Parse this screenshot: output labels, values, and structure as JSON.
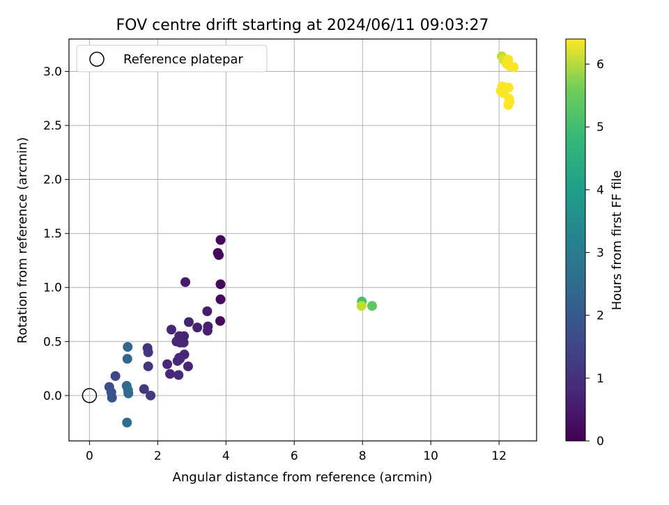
{
  "chart_data": {
    "type": "scatter",
    "title": "FOV centre drift starting at 2024/06/11 09:03:27",
    "xlabel": "Angular distance from reference (arcmin)",
    "ylabel": "Rotation from reference (arcmin)",
    "xlim": [
      -0.6,
      13.1
    ],
    "ylim": [
      -0.42,
      3.3
    ],
    "xticks": [
      0,
      2,
      4,
      6,
      8,
      10,
      12
    ],
    "yticks": [
      0.0,
      0.5,
      1.0,
      1.5,
      2.0,
      2.5,
      3.0
    ],
    "grid": true,
    "legend": {
      "placement": "top-left",
      "entries": [
        "Reference platepar"
      ]
    },
    "reference_point": {
      "x": 0.0,
      "y": 0.0,
      "label": "Reference platepar"
    },
    "colorbar": {
      "label": "Hours from first FF file",
      "colormap": "viridis",
      "range": [
        0,
        6.4
      ],
      "ticks": [
        0,
        1,
        2,
        3,
        4,
        5,
        6
      ]
    },
    "points": [
      {
        "x": 3.84,
        "y": 1.44,
        "h": 0.1
      },
      {
        "x": 3.76,
        "y": 1.32,
        "h": 0.12
      },
      {
        "x": 3.79,
        "y": 1.3,
        "h": 0.13
      },
      {
        "x": 3.84,
        "y": 1.03,
        "h": 0.15
      },
      {
        "x": 3.84,
        "y": 0.89,
        "h": 0.17
      },
      {
        "x": 3.83,
        "y": 0.69,
        "h": 0.2
      },
      {
        "x": 2.81,
        "y": 1.05,
        "h": 0.45
      },
      {
        "x": 3.45,
        "y": 0.78,
        "h": 0.5
      },
      {
        "x": 3.47,
        "y": 0.64,
        "h": 0.55
      },
      {
        "x": 3.46,
        "y": 0.6,
        "h": 0.56
      },
      {
        "x": 3.16,
        "y": 0.63,
        "h": 0.6
      },
      {
        "x": 2.91,
        "y": 0.68,
        "h": 0.62
      },
      {
        "x": 2.4,
        "y": 0.61,
        "h": 0.7
      },
      {
        "x": 2.63,
        "y": 0.55,
        "h": 0.65
      },
      {
        "x": 2.77,
        "y": 0.55,
        "h": 0.64
      },
      {
        "x": 2.55,
        "y": 0.5,
        "h": 0.66
      },
      {
        "x": 2.66,
        "y": 0.49,
        "h": 0.67
      },
      {
        "x": 2.76,
        "y": 0.49,
        "h": 0.68
      },
      {
        "x": 2.78,
        "y": 0.38,
        "h": 0.72
      },
      {
        "x": 2.58,
        "y": 0.32,
        "h": 0.74
      },
      {
        "x": 2.65,
        "y": 0.34,
        "h": 0.75
      },
      {
        "x": 2.63,
        "y": 0.35,
        "h": 0.73
      },
      {
        "x": 2.89,
        "y": 0.27,
        "h": 0.7
      },
      {
        "x": 2.28,
        "y": 0.29,
        "h": 0.72
      },
      {
        "x": 2.36,
        "y": 0.2,
        "h": 0.74
      },
      {
        "x": 2.61,
        "y": 0.19,
        "h": 0.76
      },
      {
        "x": 1.7,
        "y": 0.44,
        "h": 0.95
      },
      {
        "x": 1.72,
        "y": 0.4,
        "h": 0.96
      },
      {
        "x": 1.72,
        "y": 0.27,
        "h": 0.98
      },
      {
        "x": 1.6,
        "y": 0.06,
        "h": 1.05
      },
      {
        "x": 1.79,
        "y": 0.0,
        "h": 1.1
      },
      {
        "x": 0.76,
        "y": 0.18,
        "h": 1.35
      },
      {
        "x": 0.58,
        "y": 0.08,
        "h": 1.5
      },
      {
        "x": 0.64,
        "y": 0.03,
        "h": 1.6
      },
      {
        "x": 0.66,
        "y": -0.02,
        "h": 1.65
      },
      {
        "x": 1.12,
        "y": 0.45,
        "h": 2.1
      },
      {
        "x": 1.11,
        "y": 0.34,
        "h": 2.15
      },
      {
        "x": 1.09,
        "y": 0.09,
        "h": 2.2
      },
      {
        "x": 1.13,
        "y": 0.05,
        "h": 2.25
      },
      {
        "x": 1.14,
        "y": 0.02,
        "h": 2.25
      },
      {
        "x": 1.1,
        "y": -0.25,
        "h": 2.3
      },
      {
        "x": 7.98,
        "y": 0.87,
        "h": 4.5
      },
      {
        "x": 8.28,
        "y": 0.83,
        "h": 4.8
      },
      {
        "x": 7.97,
        "y": 0.83,
        "h": 5.8
      },
      {
        "x": 12.08,
        "y": 3.14,
        "h": 5.8
      },
      {
        "x": 12.13,
        "y": 3.11,
        "h": 6.0
      },
      {
        "x": 12.27,
        "y": 3.11,
        "h": 6.35
      },
      {
        "x": 12.22,
        "y": 3.07,
        "h": 6.3
      },
      {
        "x": 12.31,
        "y": 3.05,
        "h": 6.35
      },
      {
        "x": 12.43,
        "y": 3.04,
        "h": 6.4
      },
      {
        "x": 12.09,
        "y": 2.86,
        "h": 6.35
      },
      {
        "x": 12.2,
        "y": 2.85,
        "h": 6.35
      },
      {
        "x": 12.28,
        "y": 2.85,
        "h": 6.4
      },
      {
        "x": 12.05,
        "y": 2.82,
        "h": 6.35
      },
      {
        "x": 12.13,
        "y": 2.8,
        "h": 6.35
      },
      {
        "x": 12.29,
        "y": 2.75,
        "h": 6.4
      },
      {
        "x": 12.31,
        "y": 2.72,
        "h": 6.4
      },
      {
        "x": 12.27,
        "y": 2.69,
        "h": 6.4
      }
    ]
  }
}
